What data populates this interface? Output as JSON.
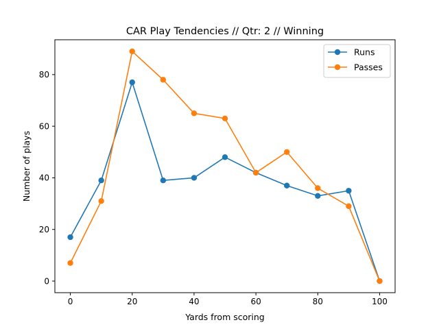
{
  "chart_data": {
    "type": "line",
    "title": "CAR Play Tendencies // Qtr: 2 // Winning",
    "xlabel": "Yards from scoring",
    "ylabel": "Number of plays",
    "x": [
      0,
      10,
      20,
      30,
      40,
      50,
      60,
      70,
      80,
      90,
      100
    ],
    "xlim": [
      -5,
      105
    ],
    "ylim": [
      -4.5,
      93.5
    ],
    "xticks": [
      0,
      20,
      40,
      60,
      80,
      100
    ],
    "yticks": [
      0,
      20,
      40,
      60,
      80
    ],
    "grid": false,
    "legend_position": "top-right",
    "series": [
      {
        "name": "Runs",
        "color": "#1f77b4",
        "values": [
          17,
          39,
          77,
          39,
          40,
          48,
          42,
          37,
          33,
          35,
          0
        ]
      },
      {
        "name": "Passes",
        "color": "#ff7f0e",
        "values": [
          7,
          31,
          89,
          78,
          65,
          63,
          42,
          50,
          36,
          29,
          0
        ]
      }
    ]
  }
}
